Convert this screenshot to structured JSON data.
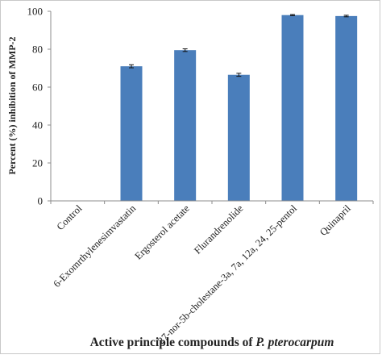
{
  "chart_data": {
    "type": "bar",
    "ylabel": "Percent (%) inhibition of MMP-2",
    "xlabel_prefix": "Active principle compounds of ",
    "xlabel_italic": "P. pterocarpum",
    "ylim": [
      0,
      100
    ],
    "yticks": [
      0,
      20,
      40,
      60,
      80,
      100
    ],
    "categories": [
      "Control",
      "6-Exomrthylenesimvastatin",
      "Ergosterol acetate",
      "Flurandrenolide",
      "27-nor-5b-cholestane-3a, 7a, 12a, 24, 25-pentol",
      "Quinapril"
    ],
    "values": [
      0,
      71,
      79.5,
      66.5,
      98,
      97.5
    ],
    "errors": [
      0,
      0.8,
      0.7,
      0.8,
      0.3,
      0.4
    ],
    "grid": false,
    "legend": "none",
    "bar_color": "#4a7ebb"
  }
}
